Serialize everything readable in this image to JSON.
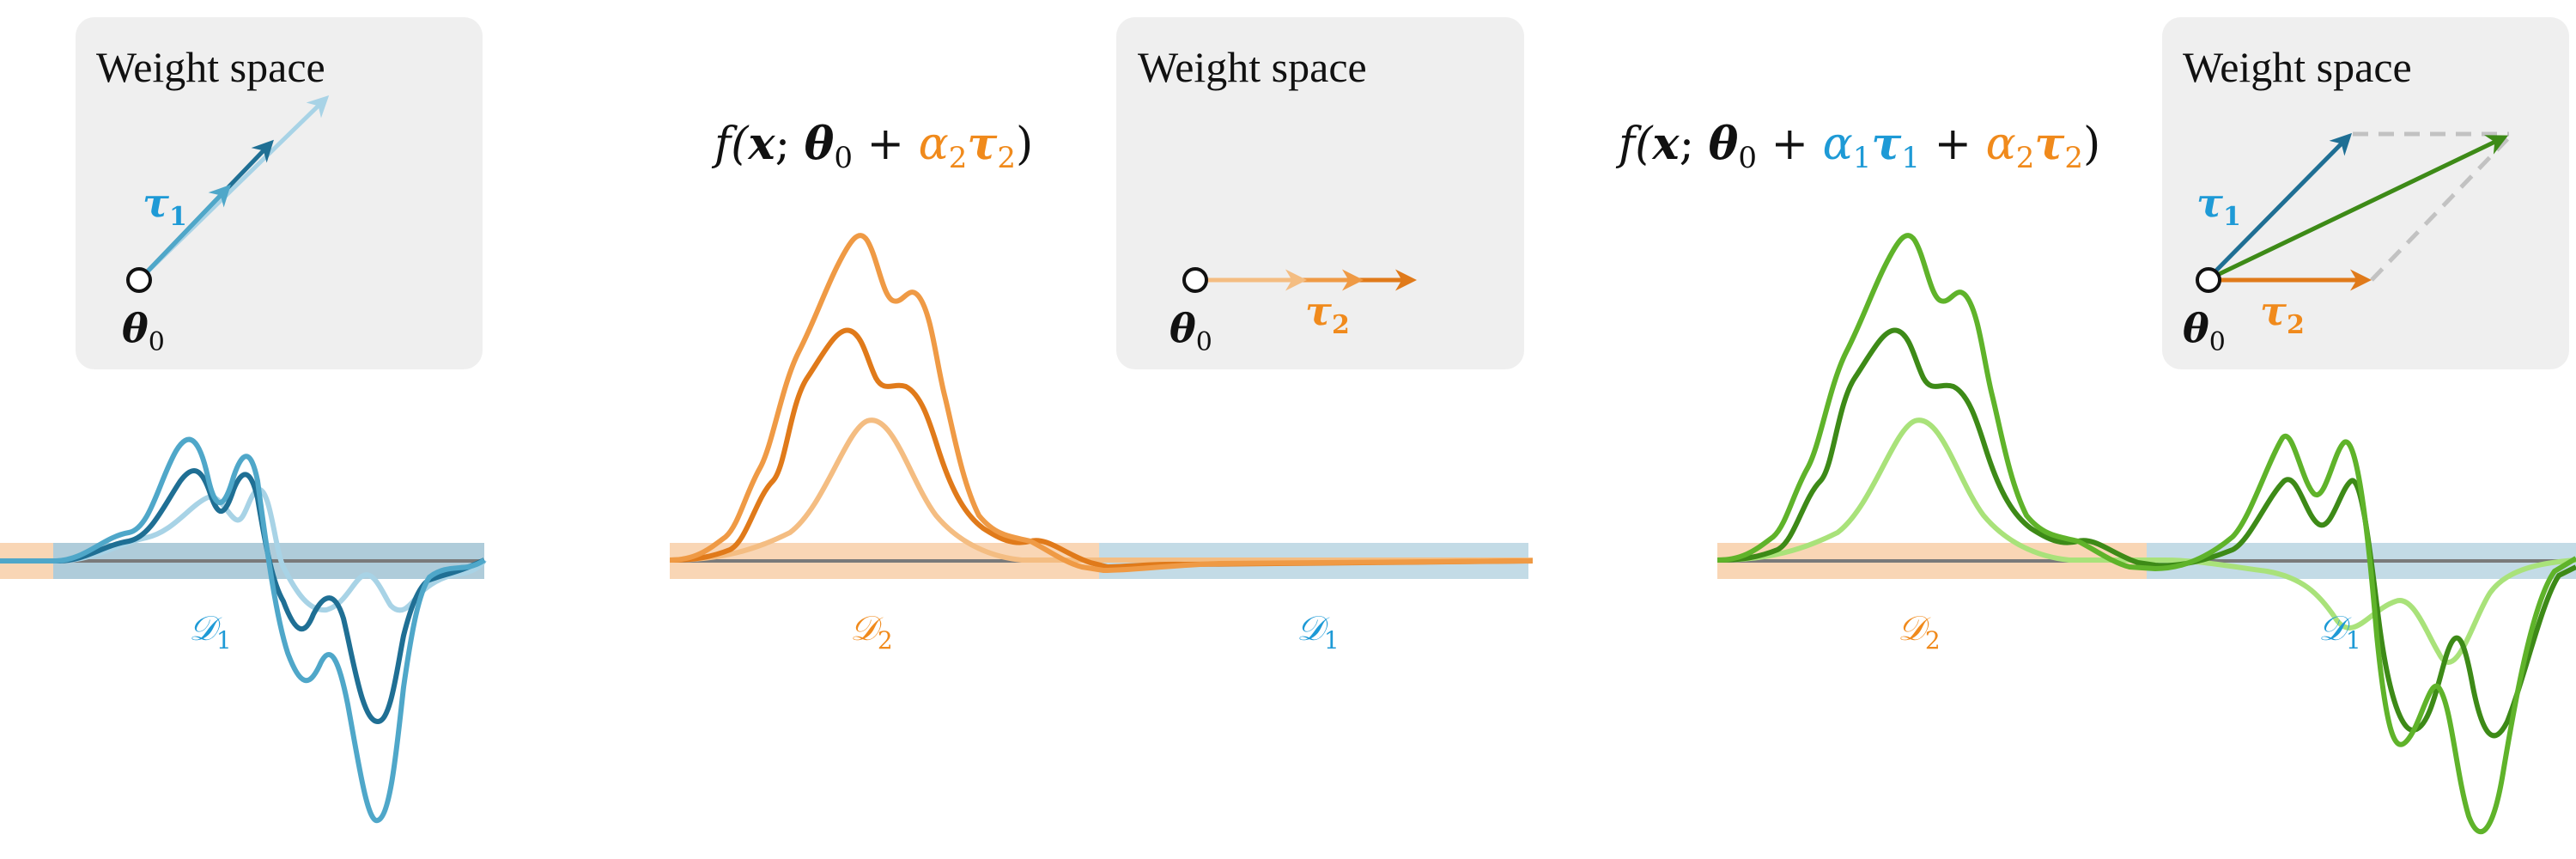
{
  "colors": {
    "blue_dark": "#1f6f94",
    "blue_mid": "#4fa7c9",
    "blue_light": "#a8d3e6",
    "blue_label": "#1e9ad6",
    "orange_dark": "#e07a1a",
    "orange_mid": "#ef9a45",
    "orange_light": "#f4bd82",
    "orange_label": "#f08a1c",
    "green_dark": "#3d8a17",
    "green_mid": "#5fb32a",
    "green_light": "#a9e27a",
    "band_orange": "#f9d6b5",
    "band_blue": "#c3dbe6",
    "band_blue_dark": "#9fc0cf",
    "axis": "#7a7a7a",
    "panel_bg": "#efefef",
    "dashed": "#c2c2c2"
  },
  "panels": [
    {
      "id": "panel-1",
      "inset": {
        "title": "Weight space",
        "tau_label": "τ",
        "tau_sub": "1",
        "theta_label": "θ",
        "theta_sub": "0"
      },
      "region_labels": [
        {
          "text": "𝒟",
          "sub": "1",
          "color": "blue_label"
        }
      ]
    },
    {
      "id": "panel-2",
      "formula": [
        {
          "t": "f(",
          "c": "black"
        },
        {
          "t": "x",
          "c": "black",
          "b": true
        },
        {
          "t": "; ",
          "c": "black"
        },
        {
          "t": "θ",
          "c": "black",
          "b": true
        },
        {
          "t": "0",
          "c": "black",
          "sub": true
        },
        {
          "t": " + ",
          "c": "black"
        },
        {
          "t": "α",
          "c": "orange_label"
        },
        {
          "t": "2",
          "c": "orange_label",
          "sub": true
        },
        {
          "t": "τ",
          "c": "orange_label",
          "b": true
        },
        {
          "t": "2",
          "c": "orange_label",
          "sub": true
        },
        {
          "t": ")",
          "c": "black"
        }
      ],
      "inset": {
        "title": "Weight space",
        "tau_label": "τ",
        "tau_sub": "2",
        "theta_label": "θ",
        "theta_sub": "0"
      },
      "region_labels": [
        {
          "text": "𝒟",
          "sub": "2",
          "color": "orange_label"
        },
        {
          "text": "𝒟",
          "sub": "1",
          "color": "blue_label"
        }
      ]
    },
    {
      "id": "panel-3",
      "formula": [
        {
          "t": "f(",
          "c": "black"
        },
        {
          "t": "x",
          "c": "black",
          "b": true
        },
        {
          "t": "; ",
          "c": "black"
        },
        {
          "t": "θ",
          "c": "black",
          "b": true
        },
        {
          "t": "0",
          "c": "black",
          "sub": true
        },
        {
          "t": " + ",
          "c": "black"
        },
        {
          "t": "α",
          "c": "blue_label"
        },
        {
          "t": "1",
          "c": "blue_label",
          "sub": true
        },
        {
          "t": "τ",
          "c": "blue_label",
          "b": true
        },
        {
          "t": "1",
          "c": "blue_label",
          "sub": true
        },
        {
          "t": " + ",
          "c": "black"
        },
        {
          "t": "α",
          "c": "orange_label"
        },
        {
          "t": "2",
          "c": "orange_label",
          "sub": true
        },
        {
          "t": "τ",
          "c": "orange_label",
          "b": true
        },
        {
          "t": "2",
          "c": "orange_label",
          "sub": true
        },
        {
          "t": ")",
          "c": "black"
        }
      ],
      "inset": {
        "title": "Weight space",
        "tau1_label": "τ",
        "tau1_sub": "1",
        "tau2_label": "τ",
        "tau2_sub": "2",
        "theta_label": "θ",
        "theta_sub": "0"
      },
      "region_labels": [
        {
          "text": "𝒟",
          "sub": "2",
          "color": "orange_label"
        },
        {
          "text": "𝒟",
          "sub": "1",
          "color": "blue_label"
        }
      ]
    }
  ]
}
